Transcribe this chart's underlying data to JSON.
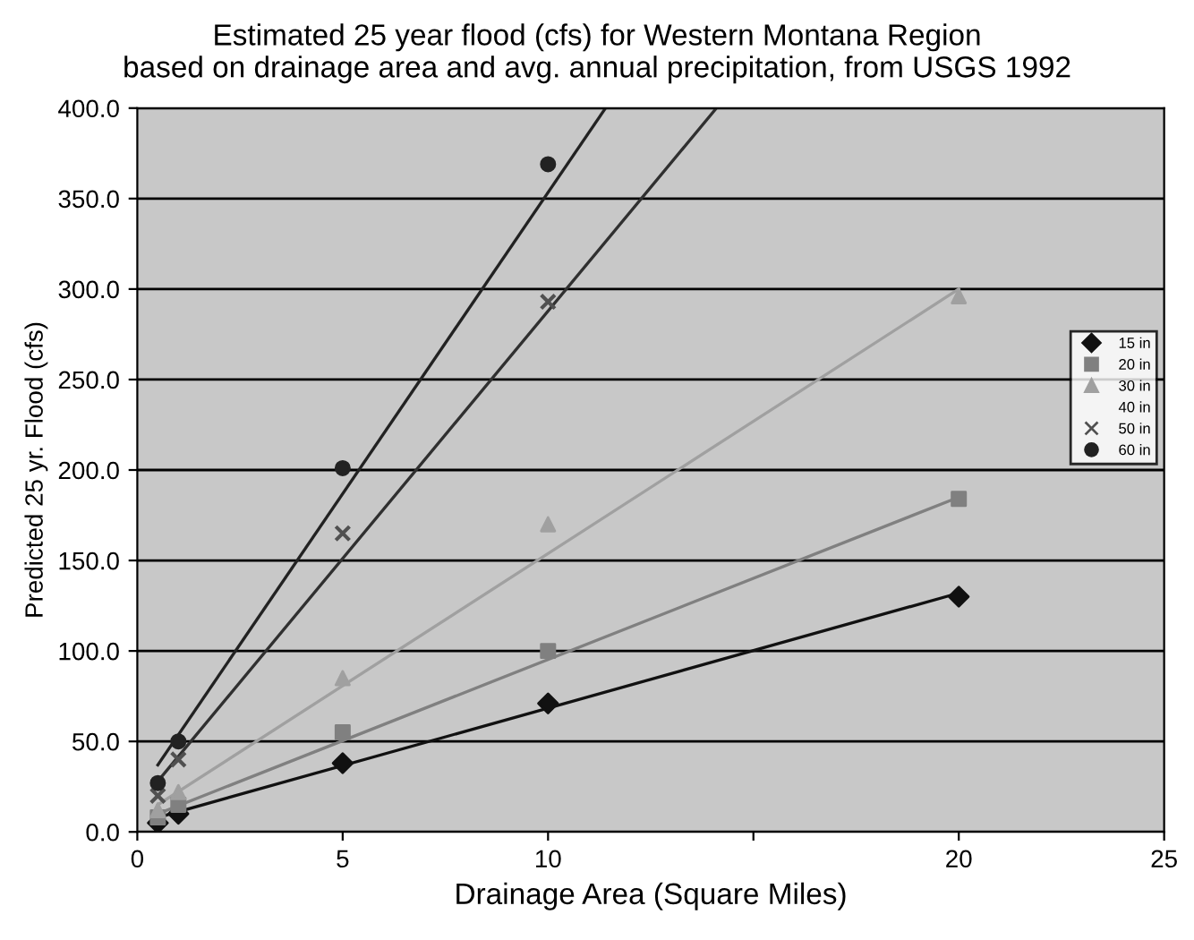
{
  "chart_data": {
    "type": "scatter",
    "title": "Estimated 25 year flood (cfs) for Western Montana Region\nbased on drainage area and avg. annual precipitation, from USGS 1992",
    "xlabel": "Drainage Area (Square Miles)",
    "ylabel": "Predicted 25 yr. Flood (cfs)",
    "x": [
      0.5,
      1,
      5,
      10,
      20
    ],
    "series": [
      {
        "name": "15 in",
        "color": "#111111",
        "marker": "diamond",
        "values": [
          5,
          10,
          38,
          71,
          130
        ]
      },
      {
        "name": "20 in",
        "color": "#808080",
        "marker": "square",
        "values": [
          8,
          15,
          55,
          100,
          184
        ]
      },
      {
        "name": "30 in",
        "color": "#a0a0a0",
        "marker": "triangle",
        "values": [
          12,
          22,
          85,
          170,
          296
        ]
      },
      {
        "name": "40 in",
        "marker": "none",
        "values": [
          null,
          null,
          null,
          null,
          null
        ]
      },
      {
        "name": "50 in",
        "color": "#505050",
        "marker": "cross",
        "values": [
          20,
          40,
          165,
          293,
          null
        ]
      },
      {
        "name": "60 in",
        "color": "#222222",
        "marker": "circle",
        "values": [
          27,
          50,
          201,
          369,
          null
        ]
      },
      {
        "type": "line",
        "color": "#111111",
        "x": [
          0.5,
          20
        ],
        "values": [
          8,
          132
        ]
      },
      {
        "type": "line",
        "color": "#808080",
        "x": [
          0.5,
          20
        ],
        "values": [
          10,
          185
        ]
      },
      {
        "type": "line",
        "color": "#a0a0a0",
        "x": [
          0.5,
          20
        ],
        "values": [
          15,
          300
        ]
      },
      {
        "type": "line",
        "color": "#303030",
        "x": [
          0.5,
          14.1
        ],
        "values": [
          28,
          400
        ]
      },
      {
        "type": "line",
        "color": "#222222",
        "x": [
          0.5,
          11.4
        ],
        "values": [
          37,
          400
        ]
      }
    ],
    "xlim": [
      0,
      25
    ],
    "xticks": [
      0,
      5,
      10,
      {
        "value": 15,
        "label": null
      },
      20,
      25
    ],
    "ylim": [
      0,
      400
    ],
    "yticks": [
      {
        "value": 0,
        "label": "0.0"
      },
      {
        "value": 50,
        "label": "50.0"
      },
      {
        "value": 100,
        "label": "100.0"
      },
      {
        "value": 150,
        "label": "150.0"
      },
      {
        "value": 200,
        "label": "200.0"
      },
      {
        "value": 250,
        "label": "250.0"
      },
      {
        "value": 300,
        "label": "300.0"
      },
      {
        "value": 350,
        "label": "350.0"
      },
      {
        "value": 400,
        "label": "400.0"
      }
    ],
    "grid": "y",
    "legend": "right"
  }
}
